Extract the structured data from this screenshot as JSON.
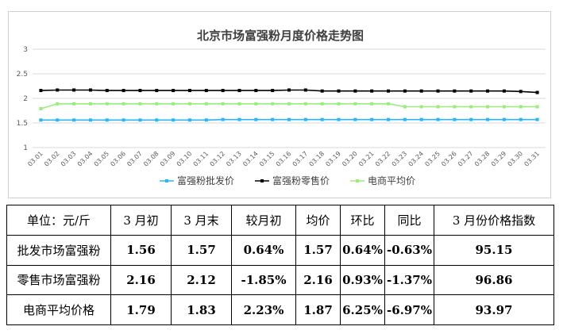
{
  "chart_data": {
    "type": "line",
    "title": "北京市场富强粉月度价格走势图",
    "ylim": [
      1,
      3
    ],
    "yticks": [
      "1",
      "1.5",
      "2",
      "2.5",
      "3"
    ],
    "categories": [
      "03.01",
      "03.02",
      "03.03",
      "03.04",
      "03.05",
      "03.06",
      "03.07",
      "03.08",
      "03.09",
      "03.10",
      "03.11",
      "03.12",
      "03.13",
      "03.14",
      "03.15",
      "03.16",
      "03.17",
      "03.18",
      "03.19",
      "03.20",
      "03.21",
      "03.22",
      "03.23",
      "03.24",
      "03.25",
      "03.26",
      "03.27",
      "03.28",
      "03.29",
      "03.30",
      "03.31"
    ],
    "series": [
      {
        "name": "富强粉批发价",
        "color": "#29b6f6",
        "marker": "square",
        "values": [
          1.56,
          1.56,
          1.56,
          1.56,
          1.56,
          1.56,
          1.56,
          1.56,
          1.56,
          1.56,
          1.56,
          1.57,
          1.57,
          1.57,
          1.57,
          1.57,
          1.57,
          1.57,
          1.57,
          1.57,
          1.57,
          1.57,
          1.57,
          1.57,
          1.57,
          1.57,
          1.57,
          1.57,
          1.57,
          1.57,
          1.57
        ]
      },
      {
        "name": "富强粉零售价",
        "color": "#000000",
        "marker": "square",
        "values": [
          2.16,
          2.17,
          2.17,
          2.17,
          2.16,
          2.16,
          2.16,
          2.16,
          2.16,
          2.16,
          2.16,
          2.16,
          2.16,
          2.16,
          2.16,
          2.17,
          2.17,
          2.15,
          2.15,
          2.15,
          2.15,
          2.15,
          2.15,
          2.15,
          2.15,
          2.15,
          2.15,
          2.15,
          2.15,
          2.14,
          2.12
        ]
      },
      {
        "name": "电商平均价",
        "color": "#99ee77",
        "marker": "square",
        "values": [
          1.79,
          1.89,
          1.89,
          1.89,
          1.89,
          1.89,
          1.89,
          1.89,
          1.89,
          1.89,
          1.89,
          1.89,
          1.89,
          1.89,
          1.89,
          1.89,
          1.89,
          1.89,
          1.89,
          1.89,
          1.89,
          1.89,
          1.83,
          1.83,
          1.83,
          1.83,
          1.83,
          1.83,
          1.83,
          1.83,
          1.83
        ]
      }
    ],
    "legend_position": "bottom",
    "grid": true
  },
  "table": {
    "headers": [
      "单位：元/斤",
      "3 月初",
      "3 月末",
      "较月初",
      "均价",
      "环比",
      "同比",
      "3 月份价格指数"
    ],
    "rows": [
      [
        "批发市场富强粉",
        "1.56",
        "1.57",
        "0.64%",
        "1.57",
        "0.64%",
        "-0.63%",
        "95.15"
      ],
      [
        "零售市场富强粉",
        "2.16",
        "2.12",
        "-1.85%",
        "2.16",
        "0.93%",
        "-1.37%",
        "96.86"
      ],
      [
        "电商平均价格",
        "1.79",
        "1.83",
        "2.23%",
        "1.87",
        "6.25%",
        "-6.97%",
        "93.97"
      ]
    ]
  }
}
